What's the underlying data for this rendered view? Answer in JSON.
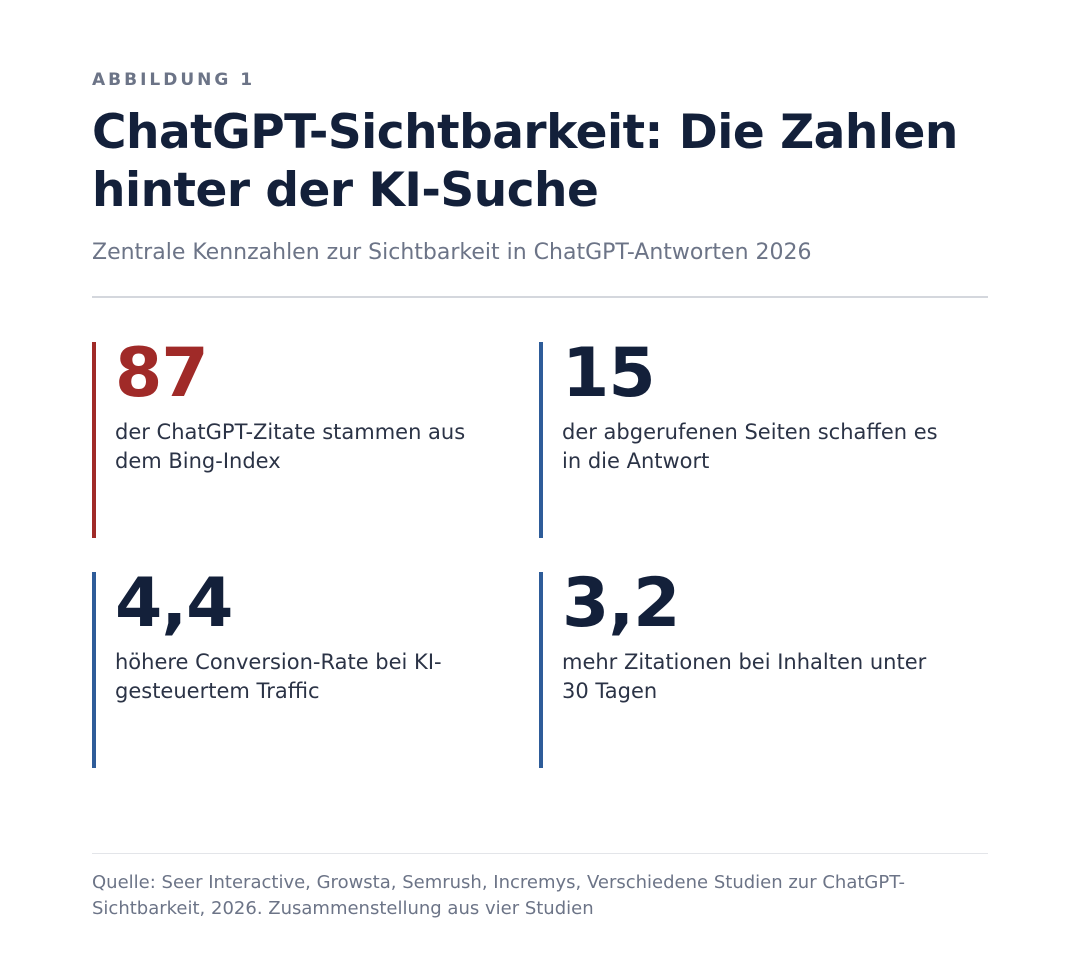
{
  "kicker": "ABBILDUNG 1",
  "title": "ChatGPT-Sichtbarkeit: Die Zahlen hinter der KI-Suche",
  "subtitle": "Zentrale Kennzahlen zur Sichtbarkeit in ChatGPT-Antworten 2026",
  "stats": [
    {
      "value": "87",
      "label": "der ChatGPT-Zitate stammen aus dem Bing-Index"
    },
    {
      "value": "15",
      "label": "der abgerufenen Seiten schaffen es in die Antwort"
    },
    {
      "value": "4,4",
      "label": "höhere Conversion-Rate bei KI-gesteuertem Traffic"
    },
    {
      "value": "3,2",
      "label": "mehr Zitationen bei Inhalten unter 30 Tagen"
    }
  ],
  "source": "Quelle: Seer Interactive, Growsta, Semrush, Incremys, Verschiedene Studien zur ChatGPT-Sichtbarkeit, 2026. Zusammenstellung aus vier Studien",
  "colors": {
    "accent": "#a02a28",
    "bar": "#2e5c99",
    "text": "#13203a",
    "muted": "#6c7487"
  }
}
